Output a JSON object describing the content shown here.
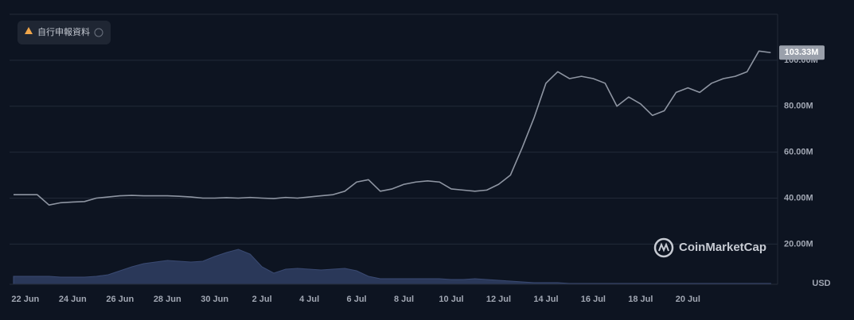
{
  "notice": "自行申報資料",
  "chart_data": {
    "type": "line",
    "categories": [
      null,
      "22 Jun",
      null,
      null,
      null,
      "24 Jun",
      null,
      null,
      null,
      "26 Jun",
      null,
      null,
      null,
      "28 Jun",
      null,
      null,
      null,
      "30 Jun",
      null,
      null,
      null,
      "2 Jul",
      null,
      null,
      null,
      "4 Jul",
      null,
      null,
      null,
      "6 Jul",
      null,
      null,
      null,
      "8 Jul",
      null,
      null,
      null,
      "10 Jul",
      null,
      null,
      null,
      "12 Jul",
      null,
      null,
      null,
      "14 Jul",
      null,
      null,
      null,
      "16 Jul",
      null,
      null,
      null,
      "18 Jul",
      null,
      null,
      null,
      "20 Jul",
      null,
      null,
      null,
      null,
      null,
      null,
      null
    ],
    "series": [
      {
        "type": "line",
        "color": "#8e95a2",
        "values": [
          41.5,
          41.5,
          41.5,
          37,
          38,
          38.3,
          38.5,
          40,
          40.5,
          41,
          41.2,
          41,
          41,
          41,
          40.8,
          40.5,
          40,
          40,
          40.2,
          40,
          40.3,
          40,
          39.8,
          40.3,
          40,
          40.5,
          41,
          41.5,
          43,
          47,
          48,
          43,
          44,
          46,
          47,
          47.5,
          47,
          44,
          43.5,
          43,
          43.5,
          46,
          50,
          62,
          75,
          90,
          95,
          92,
          93,
          92,
          90,
          80,
          84,
          81,
          76,
          78,
          86,
          88,
          86,
          90,
          92,
          93,
          95,
          104,
          103.33
        ]
      },
      {
        "type": "area",
        "axis": "y2",
        "color": "#2a3859",
        "values": [
          10,
          10,
          10,
          10,
          9,
          9,
          9,
          10,
          12,
          17,
          22,
          26,
          28,
          30,
          29,
          28,
          29,
          35,
          40,
          44,
          38,
          22,
          14,
          19,
          20,
          19,
          18,
          19,
          20,
          17,
          10,
          7,
          7,
          7,
          7,
          7,
          7,
          6,
          6,
          7,
          6,
          5,
          4,
          3,
          2,
          2,
          2,
          1,
          1,
          1,
          1,
          1,
          1,
          1,
          1,
          1,
          1,
          1,
          1,
          1,
          1,
          1,
          1,
          1,
          1
        ]
      }
    ],
    "ylim": [
      2.5,
      120
    ],
    "yticks": [
      {
        "value": 20,
        "label": "20.00M"
      },
      {
        "value": 40,
        "label": "40.00M"
      },
      {
        "value": 60,
        "label": "60.00M"
      },
      {
        "value": 80,
        "label": "80.00M"
      },
      {
        "value": 100,
        "label": "100.00M"
      }
    ],
    "y2lim": [
      0,
      100
    ],
    "grid": true,
    "y_unit_label": "USD",
    "current_value": {
      "value": 103.33,
      "label": "103.33M"
    },
    "watermark": "CoinMarketCap"
  }
}
